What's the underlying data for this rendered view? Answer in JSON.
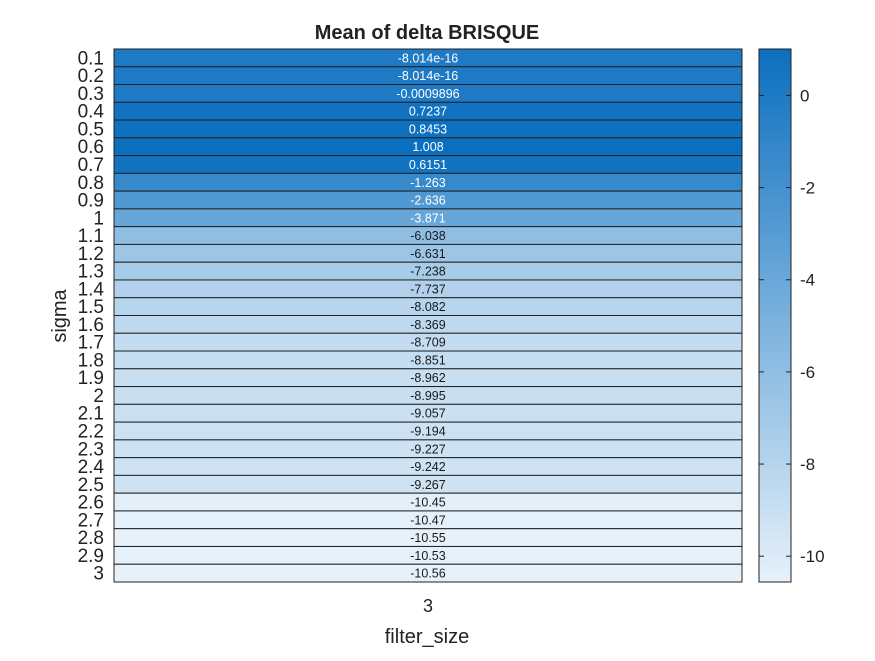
{
  "chart_data": {
    "type": "heatmap",
    "title": "Mean of delta BRISQUE",
    "xlabel": "filter_size",
    "ylabel": "sigma",
    "x_categories": [
      "3"
    ],
    "y_categories": [
      "0.1",
      "0.2",
      "0.3",
      "0.4",
      "0.5",
      "0.6",
      "0.7",
      "0.8",
      "0.9",
      "1",
      "1.1",
      "1.2",
      "1.3",
      "1.4",
      "1.5",
      "1.6",
      "1.7",
      "1.8",
      "1.9",
      "2",
      "2.1",
      "2.2",
      "2.3",
      "2.4",
      "2.5",
      "2.6",
      "2.7",
      "2.8",
      "2.9",
      "3"
    ],
    "values": [
      -8.014e-16,
      -8.014e-16,
      -0.0009896,
      0.7237,
      0.8453,
      1.008,
      0.6151,
      -1.263,
      -2.636,
      -3.871,
      -6.038,
      -6.631,
      -7.238,
      -7.737,
      -8.082,
      -8.369,
      -8.709,
      -8.851,
      -8.962,
      -8.995,
      -9.057,
      -9.194,
      -9.227,
      -9.242,
      -9.267,
      -10.45,
      -10.47,
      -10.55,
      -10.53,
      -10.56
    ],
    "cell_labels": [
      "-8.014e-16",
      "-8.014e-16",
      "-0.0009896",
      "0.7237",
      "0.8453",
      "1.008",
      "0.6151",
      "-1.263",
      "-2.636",
      "-3.871",
      "-6.038",
      "-6.631",
      "-7.238",
      "-7.737",
      "-8.082",
      "-8.369",
      "-8.709",
      "-8.851",
      "-8.962",
      "-8.995",
      "-9.057",
      "-9.194",
      "-9.227",
      "-9.242",
      "-9.267",
      "-10.45",
      "-10.47",
      "-10.55",
      "-10.53",
      "-10.56"
    ],
    "colorbar": {
      "range": [
        -10.56,
        1.008
      ],
      "ticks": [
        0,
        -2,
        -4,
        -6,
        -8,
        -10
      ],
      "tick_labels": [
        "0",
        "-2",
        "-4",
        "-6",
        "-8",
        "-10"
      ],
      "low_color": "#e6f1fa",
      "high_color": "#0b6fbf"
    },
    "grid": false,
    "legend": "colorbar-right"
  }
}
